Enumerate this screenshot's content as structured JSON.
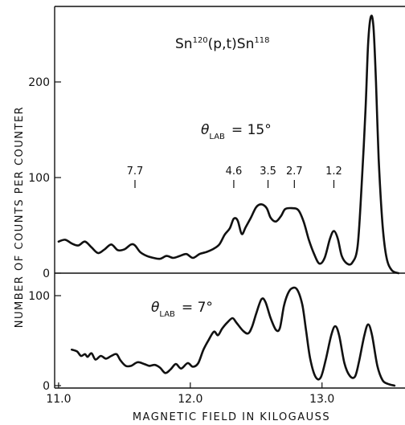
{
  "chart_data": [
    {
      "type": "line",
      "title": "Sn120(p,t)Sn118",
      "title_parts": {
        "a": "Sn",
        "b": "120",
        "c": "(p,t)Sn",
        "d": "118"
      },
      "angle_label": {
        "theta": "θ",
        "sub": "LAB",
        "value": "= 15°"
      },
      "xlabel": "MAGNETIC FIELD IN KILOGAUSS",
      "ylabel": "NUMBER OF COUNTS PER COUNTER",
      "xlim": [
        10.97,
        13.63
      ],
      "ylim": [
        0,
        272
      ],
      "y_ticks": [
        0,
        100,
        200
      ],
      "y_tick_labels": [
        "0",
        "100",
        "200"
      ],
      "peak_labels": [
        {
          "label": "7.7",
          "x": 11.58
        },
        {
          "label": "4.6",
          "x": 12.33
        },
        {
          "label": "3.5",
          "x": 12.59
        },
        {
          "label": "2.7",
          "x": 12.79
        },
        {
          "label": "1.2",
          "x": 13.09
        }
      ],
      "series": [
        {
          "name": "",
          "points": [
            [
              11.0,
              33
            ],
            [
              11.05,
              35
            ],
            [
              11.1,
              31
            ],
            [
              11.15,
              29
            ],
            [
              11.2,
              33
            ],
            [
              11.25,
              27
            ],
            [
              11.3,
              21
            ],
            [
              11.35,
              25
            ],
            [
              11.4,
              30
            ],
            [
              11.45,
              24
            ],
            [
              11.5,
              25
            ],
            [
              11.55,
              30
            ],
            [
              11.58,
              29
            ],
            [
              11.62,
              22
            ],
            [
              11.67,
              18
            ],
            [
              11.72,
              16
            ],
            [
              11.77,
              15
            ],
            [
              11.82,
              18
            ],
            [
              11.87,
              16
            ],
            [
              11.92,
              18
            ],
            [
              11.97,
              20
            ],
            [
              12.02,
              16
            ],
            [
              12.07,
              20
            ],
            [
              12.12,
              22
            ],
            [
              12.17,
              25
            ],
            [
              12.22,
              30
            ],
            [
              12.26,
              40
            ],
            [
              12.3,
              47
            ],
            [
              12.33,
              57
            ],
            [
              12.36,
              55
            ],
            [
              12.39,
              41
            ],
            [
              12.42,
              48
            ],
            [
              12.46,
              58
            ],
            [
              12.5,
              69
            ],
            [
              12.54,
              72
            ],
            [
              12.58,
              68
            ],
            [
              12.61,
              58
            ],
            [
              12.65,
              54
            ],
            [
              12.69,
              60
            ],
            [
              12.72,
              67
            ],
            [
              12.77,
              68
            ],
            [
              12.82,
              66
            ],
            [
              12.86,
              54
            ],
            [
              12.9,
              35
            ],
            [
              12.94,
              20
            ],
            [
              12.98,
              10
            ],
            [
              13.02,
              16
            ],
            [
              13.06,
              36
            ],
            [
              13.09,
              44
            ],
            [
              13.12,
              36
            ],
            [
              13.15,
              18
            ],
            [
              13.19,
              10
            ],
            [
              13.23,
              11
            ],
            [
              13.27,
              28
            ],
            [
              13.3,
              90
            ],
            [
              13.33,
              170
            ],
            [
              13.35,
              240
            ],
            [
              13.37,
              268
            ],
            [
              13.39,
              258
            ],
            [
              13.41,
              200
            ],
            [
              13.43,
              120
            ],
            [
              13.46,
              50
            ],
            [
              13.49,
              16
            ],
            [
              13.53,
              3
            ],
            [
              13.58,
              0
            ]
          ]
        }
      ]
    },
    {
      "type": "line",
      "title": "",
      "angle_label": {
        "theta": "θ",
        "sub": "LAB",
        "value": "= 7°"
      },
      "xlim": [
        10.97,
        13.63
      ],
      "ylim": [
        0,
        120
      ],
      "y_ticks": [
        0,
        100
      ],
      "y_tick_labels": [
        "0",
        "100"
      ],
      "x_ticks": [
        11.0,
        12.0,
        13.0
      ],
      "x_tick_labels": [
        "11.0",
        "12.0",
        "13.0"
      ],
      "series": [
        {
          "name": "",
          "points": [
            [
              11.1,
              40
            ],
            [
              11.14,
              38
            ],
            [
              11.17,
              33
            ],
            [
              11.2,
              35
            ],
            [
              11.22,
              32
            ],
            [
              11.25,
              36
            ],
            [
              11.28,
              29
            ],
            [
              11.32,
              33
            ],
            [
              11.36,
              30
            ],
            [
              11.4,
              33
            ],
            [
              11.44,
              35
            ],
            [
              11.47,
              28
            ],
            [
              11.51,
              22
            ],
            [
              11.55,
              22
            ],
            [
              11.6,
              26
            ],
            [
              11.65,
              24
            ],
            [
              11.69,
              22
            ],
            [
              11.73,
              23
            ],
            [
              11.77,
              20
            ],
            [
              11.81,
              14
            ],
            [
              11.85,
              18
            ],
            [
              11.89,
              24
            ],
            [
              11.93,
              19
            ],
            [
              11.98,
              25
            ],
            [
              12.02,
              21
            ],
            [
              12.06,
              25
            ],
            [
              12.1,
              40
            ],
            [
              12.14,
              51
            ],
            [
              12.18,
              60
            ],
            [
              12.21,
              56
            ],
            [
              12.24,
              63
            ],
            [
              12.28,
              70
            ],
            [
              12.32,
              75
            ],
            [
              12.35,
              70
            ],
            [
              12.4,
              61
            ],
            [
              12.44,
              58
            ],
            [
              12.47,
              66
            ],
            [
              12.5,
              80
            ],
            [
              12.54,
              96
            ],
            [
              12.57,
              93
            ],
            [
              12.61,
              75
            ],
            [
              12.65,
              62
            ],
            [
              12.68,
              64
            ],
            [
              12.71,
              88
            ],
            [
              12.74,
              102
            ],
            [
              12.77,
              108
            ],
            [
              12.81,
              107
            ],
            [
              12.85,
              90
            ],
            [
              12.88,
              60
            ],
            [
              12.91,
              30
            ],
            [
              12.95,
              10
            ],
            [
              12.99,
              9
            ],
            [
              13.03,
              30
            ],
            [
              13.07,
              56
            ],
            [
              13.1,
              66
            ],
            [
              13.13,
              56
            ],
            [
              13.17,
              25
            ],
            [
              13.21,
              11
            ],
            [
              13.25,
              10
            ],
            [
              13.28,
              26
            ],
            [
              13.32,
              55
            ],
            [
              13.35,
              68
            ],
            [
              13.38,
              56
            ],
            [
              13.42,
              22
            ],
            [
              13.46,
              6
            ],
            [
              13.5,
              2
            ],
            [
              13.55,
              0
            ]
          ]
        }
      ]
    }
  ]
}
